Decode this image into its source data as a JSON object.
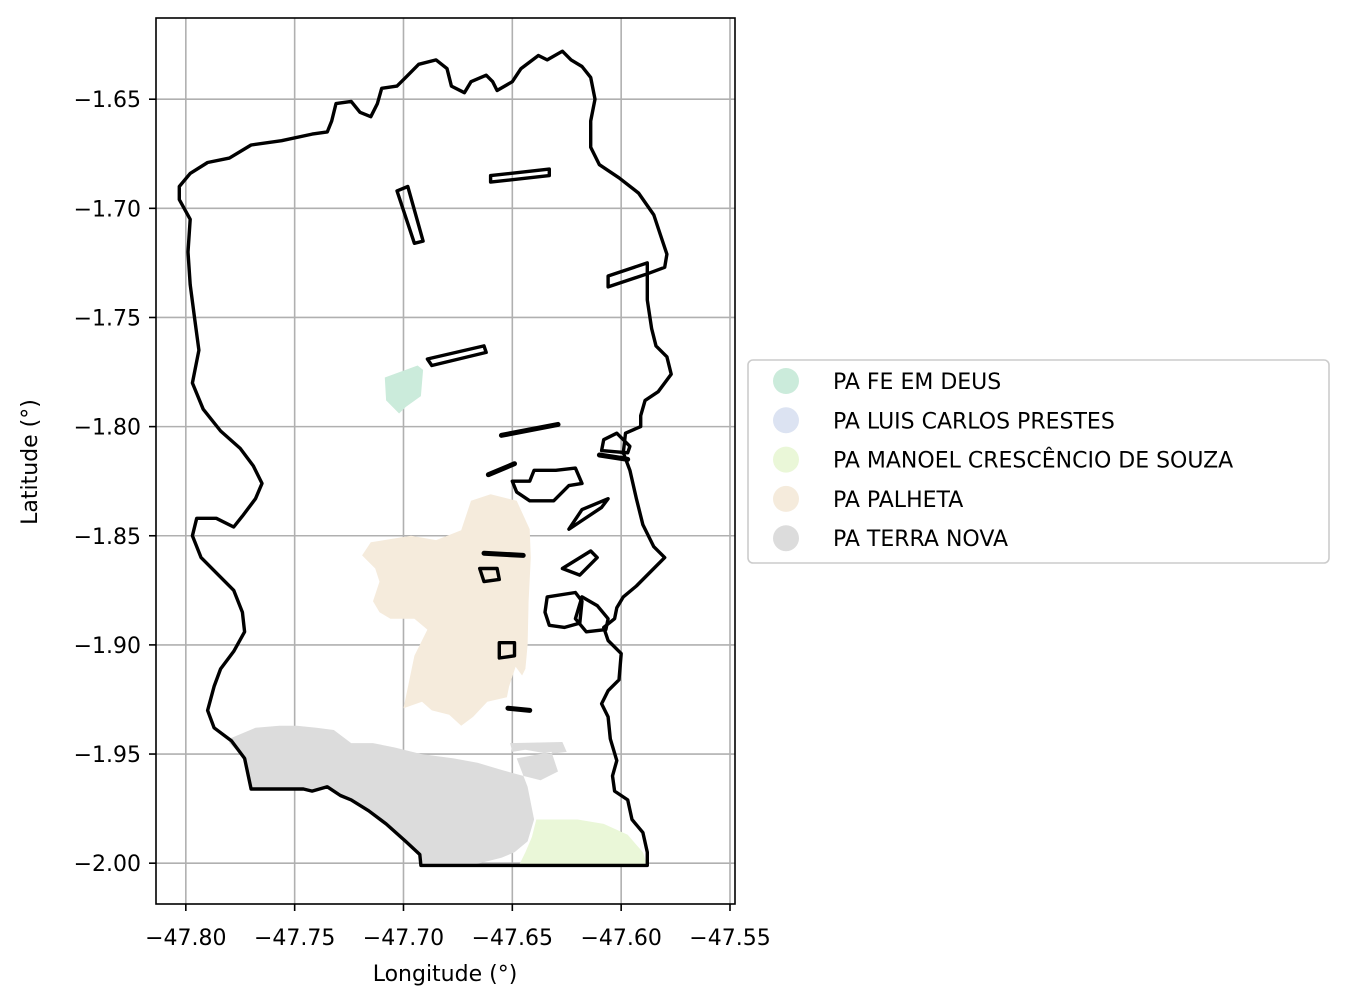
{
  "map": {
    "x_axis": {
      "label": "Longitude (°)",
      "ticks": [
        -47.8,
        -47.75,
        -47.7,
        -47.65,
        -47.6,
        -47.55
      ],
      "tick_labels": [
        "−47.80",
        "−47.75",
        "−47.70",
        "−47.65",
        "−47.60",
        "−47.55"
      ],
      "range": [
        -47.8137,
        -47.5477
      ]
    },
    "y_axis": {
      "label": "Latitude (°)",
      "ticks": [
        -1.65,
        -1.7,
        -1.75,
        -1.8,
        -1.85,
        -1.9,
        -1.95,
        -2.0
      ],
      "tick_labels": [
        "−1.65",
        "−1.70",
        "−1.75",
        "−1.80",
        "−1.85",
        "−1.90",
        "−1.95",
        "−2.00"
      ],
      "range": [
        -2.0187,
        -1.6128
      ]
    },
    "grid": true,
    "legend": {
      "placement": "right-center",
      "entries": [
        {
          "label": "PA FE EM DEUS",
          "color": "#cbebdb"
        },
        {
          "label": "PA LUIS CARLOS PRESTES",
          "color": "#dce3f2"
        },
        {
          "label": "PA MANOEL CRESCÊNCIO DE SOUZA",
          "color": "#eaf7d8"
        },
        {
          "label": "PA PALHETA",
          "color": "#f5ebdc"
        },
        {
          "label": "PA TERRA NOVA",
          "color": "#dcdcdc"
        }
      ]
    },
    "regions": [
      {
        "name": "PA FE EM DEUS",
        "color": "#cbebdb",
        "rings": [
          [
            [
              -47.7086,
              -1.7775
            ],
            [
              -47.6935,
              -1.772
            ],
            [
              -47.691,
              -1.774
            ],
            [
              -47.692,
              -1.786
            ],
            [
              -47.699,
              -1.791
            ],
            [
              -47.702,
              -1.794
            ],
            [
              -47.708,
              -1.788
            ]
          ]
        ]
      },
      {
        "name": "PA PALHETA",
        "color": "#f5ebdc",
        "rings": [
          [
            [
              -47.719,
              -1.859
            ],
            [
              -47.715,
              -1.853
            ],
            [
              -47.6965,
              -1.85
            ],
            [
              -47.685,
              -1.852
            ],
            [
              -47.6735,
              -1.8475
            ],
            [
              -47.669,
              -1.834
            ],
            [
              -47.66,
              -1.831
            ],
            [
              -47.648,
              -1.834
            ],
            [
              -47.642,
              -1.847
            ],
            [
              -47.6415,
              -1.86
            ],
            [
              -47.6425,
              -1.88
            ],
            [
              -47.643,
              -1.9
            ],
            [
              -47.644,
              -1.911
            ],
            [
              -47.6455,
              -1.914
            ],
            [
              -47.6485,
              -1.91
            ],
            [
              -47.6515,
              -1.919
            ],
            [
              -47.6525,
              -1.924
            ],
            [
              -47.6615,
              -1.926
            ],
            [
              -47.668,
              -1.933
            ],
            [
              -47.6735,
              -1.937
            ],
            [
              -47.679,
              -1.932
            ],
            [
              -47.687,
              -1.93
            ],
            [
              -47.6915,
              -1.926
            ],
            [
              -47.7,
              -1.929
            ],
            [
              -47.695,
              -1.905
            ],
            [
              -47.689,
              -1.893
            ],
            [
              -47.695,
              -1.888
            ],
            [
              -47.706,
              -1.888
            ],
            [
              -47.711,
              -1.885
            ],
            [
              -47.714,
              -1.88
            ],
            [
              -47.711,
              -1.871
            ],
            [
              -47.713,
              -1.865
            ]
          ]
        ]
      },
      {
        "name": "PA TERRA NOVA",
        "color": "#dcdcdc",
        "rings": [
          [
            [
              -47.78,
              -1.943
            ],
            [
              -47.768,
              -1.938
            ],
            [
              -47.757,
              -1.937
            ],
            [
              -47.749,
              -1.937
            ],
            [
              -47.74,
              -1.938
            ],
            [
              -47.732,
              -1.939
            ],
            [
              -47.724,
              -1.945
            ],
            [
              -47.714,
              -1.945
            ],
            [
              -47.704,
              -1.947
            ],
            [
              -47.692,
              -1.95
            ],
            [
              -47.677,
              -1.952
            ],
            [
              -47.666,
              -1.954
            ],
            [
              -47.656,
              -1.957
            ],
            [
              -47.645,
              -1.96
            ],
            [
              -47.637,
              -1.962
            ],
            [
              -47.629,
              -1.958
            ],
            [
              -47.632,
              -1.949
            ],
            [
              -47.648,
              -1.952
            ],
            [
              -47.643,
              -1.965
            ],
            [
              -47.64,
              -1.98
            ],
            [
              -47.643,
              -1.99
            ],
            [
              -47.649,
              -1.995
            ],
            [
              -47.655,
              -1.9975
            ],
            [
              -47.669,
              -2.001
            ],
            [
              -47.692,
              -2.001
            ],
            [
              -47.6925,
              -1.996
            ],
            [
              -47.699,
              -1.99
            ],
            [
              -47.708,
              -1.982
            ],
            [
              -47.716,
              -1.976
            ],
            [
              -47.724,
              -1.971
            ],
            [
              -47.729,
              -1.969
            ],
            [
              -47.735,
              -1.965
            ],
            [
              -47.742,
              -1.967
            ],
            [
              -47.746,
              -1.966
            ],
            [
              -47.77,
              -1.966
            ],
            [
              -47.773,
              -1.952
            ],
            [
              -47.78,
              -1.945
            ]
          ],
          [
            [
              -47.651,
              -1.945
            ],
            [
              -47.627,
              -1.9445
            ],
            [
              -47.625,
              -1.949
            ],
            [
              -47.633,
              -1.95
            ],
            [
              -47.644,
              -1.948
            ],
            [
              -47.65,
              -1.949
            ]
          ]
        ]
      },
      {
        "name": "PA MANOEL CRESCÊNCIO DE SOUZA",
        "color": "#eaf7d8",
        "rings": [
          [
            [
              -47.639,
              -1.98
            ],
            [
              -47.62,
              -1.98
            ],
            [
              -47.608,
              -1.982
            ],
            [
              -47.597,
              -1.987
            ],
            [
              -47.59,
              -1.995
            ],
            [
              -47.588,
              -2.001
            ],
            [
              -47.647,
              -2.001
            ],
            [
              -47.644,
              -1.995
            ],
            [
              -47.641,
              -1.988
            ]
          ]
        ]
      }
    ],
    "boundary_outline": [
      [
        -47.803,
        -1.69
      ],
      [
        -47.798,
        -1.684
      ],
      [
        -47.79,
        -1.679
      ],
      [
        -47.78,
        -1.677
      ],
      [
        -47.77,
        -1.671
      ],
      [
        -47.756,
        -1.669
      ],
      [
        -47.742,
        -1.666
      ],
      [
        -47.735,
        -1.665
      ],
      [
        -47.733,
        -1.66
      ],
      [
        -47.731,
        -1.652
      ],
      [
        -47.724,
        -1.651
      ],
      [
        -47.72,
        -1.656
      ],
      [
        -47.715,
        -1.658
      ],
      [
        -47.712,
        -1.652
      ],
      [
        -47.71,
        -1.645
      ],
      [
        -47.703,
        -1.644
      ],
      [
        -47.699,
        -1.64
      ],
      [
        -47.693,
        -1.634
      ],
      [
        -47.685,
        -1.632
      ],
      [
        -47.68,
        -1.636
      ],
      [
        -47.678,
        -1.644
      ],
      [
        -47.672,
        -1.647
      ],
      [
        -47.669,
        -1.642
      ],
      [
        -47.662,
        -1.639
      ],
      [
        -47.659,
        -1.642
      ],
      [
        -47.657,
        -1.646
      ],
      [
        -47.65,
        -1.642
      ],
      [
        -47.646,
        -1.636
      ],
      [
        -47.638,
        -1.63
      ],
      [
        -47.634,
        -1.632
      ],
      [
        -47.627,
        -1.628
      ],
      [
        -47.623,
        -1.632
      ],
      [
        -47.618,
        -1.635
      ],
      [
        -47.614,
        -1.64
      ],
      [
        -47.612,
        -1.65
      ],
      [
        -47.614,
        -1.66
      ],
      [
        -47.614,
        -1.672
      ],
      [
        -47.61,
        -1.68
      ],
      [
        -47.601,
        -1.686
      ],
      [
        -47.592,
        -1.693
      ],
      [
        -47.585,
        -1.703
      ],
      [
        -47.582,
        -1.712
      ],
      [
        -47.579,
        -1.721
      ],
      [
        -47.58,
        -1.727
      ],
      [
        -47.588,
        -1.73
      ],
      [
        -47.588,
        -1.742
      ],
      [
        -47.586,
        -1.755
      ],
      [
        -47.584,
        -1.763
      ],
      [
        -47.579,
        -1.768
      ],
      [
        -47.577,
        -1.776
      ],
      [
        -47.583,
        -1.784
      ],
      [
        -47.589,
        -1.788
      ],
      [
        -47.591,
        -1.795
      ],
      [
        -47.591,
        -1.8
      ],
      [
        -47.598,
        -1.803
      ],
      [
        -47.599,
        -1.812
      ],
      [
        -47.596,
        -1.82
      ],
      [
        -47.593,
        -1.833
      ],
      [
        -47.59,
        -1.845
      ],
      [
        -47.585,
        -1.855
      ],
      [
        -47.58,
        -1.86
      ],
      [
        -47.585,
        -1.865
      ],
      [
        -47.593,
        -1.873
      ],
      [
        -47.599,
        -1.878
      ],
      [
        -47.602,
        -1.883
      ],
      [
        -47.603,
        -1.888
      ],
      [
        -47.608,
        -1.892
      ],
      [
        -47.606,
        -1.898
      ],
      [
        -47.6,
        -1.904
      ],
      [
        -47.601,
        -1.916
      ],
      [
        -47.606,
        -1.921
      ],
      [
        -47.609,
        -1.927
      ],
      [
        -47.606,
        -1.933
      ],
      [
        -47.605,
        -1.943
      ],
      [
        -47.602,
        -1.953
      ],
      [
        -47.604,
        -1.96
      ],
      [
        -47.603,
        -1.967
      ],
      [
        -47.597,
        -1.971
      ],
      [
        -47.595,
        -1.98
      ],
      [
        -47.59,
        -1.986
      ],
      [
        -47.588,
        -1.995
      ],
      [
        -47.588,
        -2.001
      ],
      [
        -47.692,
        -2.001
      ],
      [
        -47.6925,
        -1.996
      ],
      [
        -47.699,
        -1.99
      ],
      [
        -47.708,
        -1.982
      ],
      [
        -47.716,
        -1.976
      ],
      [
        -47.724,
        -1.971
      ],
      [
        -47.729,
        -1.969
      ],
      [
        -47.735,
        -1.965
      ],
      [
        -47.742,
        -1.967
      ],
      [
        -47.746,
        -1.966
      ],
      [
        -47.77,
        -1.966
      ],
      [
        -47.773,
        -1.952
      ],
      [
        -47.779,
        -1.944
      ],
      [
        -47.787,
        -1.938
      ],
      [
        -47.79,
        -1.93
      ],
      [
        -47.787,
        -1.919
      ],
      [
        -47.784,
        -1.911
      ],
      [
        -47.778,
        -1.903
      ],
      [
        -47.773,
        -1.894
      ],
      [
        -47.774,
        -1.885
      ],
      [
        -47.778,
        -1.875
      ],
      [
        -47.785,
        -1.868
      ],
      [
        -47.793,
        -1.86
      ],
      [
        -47.797,
        -1.85
      ],
      [
        -47.795,
        -1.842
      ],
      [
        -47.786,
        -1.842
      ],
      [
        -47.778,
        -1.846
      ],
      [
        -47.774,
        -1.841
      ],
      [
        -47.768,
        -1.833
      ],
      [
        -47.765,
        -1.826
      ],
      [
        -47.769,
        -1.818
      ],
      [
        -47.775,
        -1.81
      ],
      [
        -47.784,
        -1.802
      ],
      [
        -47.792,
        -1.792
      ],
      [
        -47.797,
        -1.78
      ],
      [
        -47.794,
        -1.765
      ],
      [
        -47.796,
        -1.75
      ],
      [
        -47.798,
        -1.735
      ],
      [
        -47.799,
        -1.72
      ],
      [
        -47.798,
        -1.705
      ],
      [
        -47.803,
        -1.696
      ]
    ],
    "inner_outlines": [
      [
        [
          -47.703,
          -1.692
        ],
        [
          -47.698,
          -1.69
        ],
        [
          -47.691,
          -1.715
        ],
        [
          -47.695,
          -1.716
        ]
      ],
      [
        [
          -47.66,
          -1.685
        ],
        [
          -47.633,
          -1.682
        ],
        [
          -47.633,
          -1.685
        ],
        [
          -47.66,
          -1.688
        ]
      ],
      [
        [
          -47.606,
          -1.731
        ],
        [
          -47.588,
          -1.725
        ],
        [
          -47.588,
          -1.73
        ],
        [
          -47.606,
          -1.736
        ]
      ],
      [
        [
          -47.689,
          -1.769
        ],
        [
          -47.663,
          -1.763
        ],
        [
          -47.662,
          -1.766
        ],
        [
          -47.687,
          -1.772
        ]
      ],
      [
        [
          -47.609,
          -1.811
        ],
        [
          -47.597,
          -1.812
        ],
        [
          -47.596,
          -1.809
        ],
        [
          -47.602,
          -1.803
        ],
        [
          -47.608,
          -1.806
        ]
      ],
      [
        [
          -47.65,
          -1.825
        ],
        [
          -47.642,
          -1.825
        ],
        [
          -47.64,
          -1.82
        ],
        [
          -47.63,
          -1.82
        ],
        [
          -47.621,
          -1.819
        ],
        [
          -47.618,
          -1.826
        ],
        [
          -47.624,
          -1.827
        ],
        [
          -47.631,
          -1.834
        ],
        [
          -47.642,
          -1.834
        ],
        [
          -47.648,
          -1.83
        ]
      ],
      [
        [
          -47.618,
          -1.838
        ],
        [
          -47.606,
          -1.833
        ],
        [
          -47.609,
          -1.837
        ],
        [
          -47.618,
          -1.843
        ],
        [
          -47.624,
          -1.847
        ]
      ],
      [
        [
          -47.665,
          -1.865
        ],
        [
          -47.657,
          -1.865
        ],
        [
          -47.656,
          -1.87
        ],
        [
          -47.663,
          -1.871
        ]
      ],
      [
        [
          -47.618,
          -1.878
        ],
        [
          -47.611,
          -1.882
        ],
        [
          -47.606,
          -1.888
        ],
        [
          -47.607,
          -1.893
        ],
        [
          -47.616,
          -1.894
        ],
        [
          -47.621,
          -1.888
        ]
      ],
      [
        [
          -47.634,
          -1.878
        ],
        [
          -47.621,
          -1.876
        ],
        [
          -47.618,
          -1.88
        ],
        [
          -47.619,
          -1.89
        ],
        [
          -47.626,
          -1.892
        ],
        [
          -47.633,
          -1.891
        ],
        [
          -47.635,
          -1.885
        ]
      ],
      [
        [
          -47.627,
          -1.865
        ],
        [
          -47.614,
          -1.857
        ],
        [
          -47.611,
          -1.86
        ],
        [
          -47.619,
          -1.868
        ]
      ],
      [
        [
          -47.656,
          -1.899
        ],
        [
          -47.649,
          -1.899
        ],
        [
          -47.649,
          -1.905
        ],
        [
          -47.656,
          -1.906
        ]
      ]
    ],
    "dash_marks": [
      [
        [
          -47.655,
          -1.804
        ],
        [
          -47.629,
          -1.799
        ]
      ],
      [
        [
          -47.661,
          -1.822
        ],
        [
          -47.649,
          -1.817
        ]
      ],
      [
        [
          -47.663,
          -1.858
        ],
        [
          -47.645,
          -1.859
        ]
      ],
      [
        [
          -47.61,
          -1.813
        ],
        [
          -47.597,
          -1.815
        ]
      ],
      [
        [
          -47.652,
          -1.929
        ],
        [
          -47.642,
          -1.93
        ]
      ]
    ]
  }
}
